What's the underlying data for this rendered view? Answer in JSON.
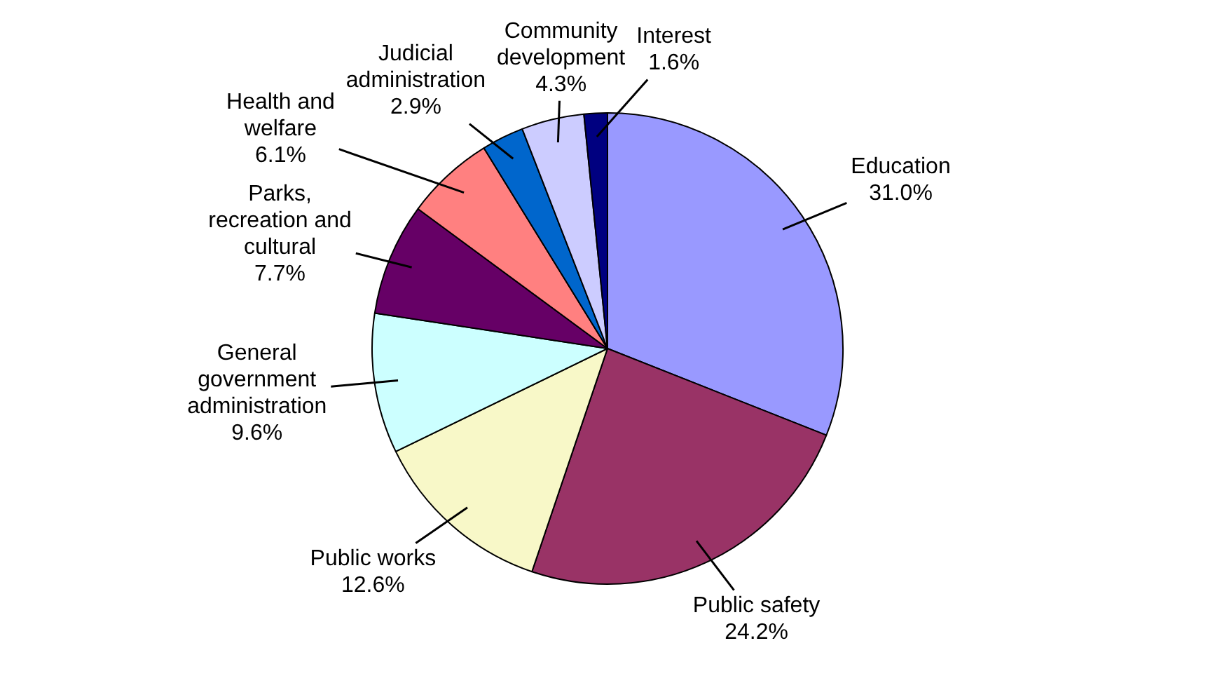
{
  "chart_data": {
    "type": "pie",
    "categories": [
      "Education",
      "Public safety",
      "Public works",
      "General government administration",
      "Parks, recreation and cultural",
      "Health and welfare",
      "Judicial administration",
      "Community development",
      "Interest"
    ],
    "values": [
      31.0,
      24.2,
      12.6,
      9.6,
      7.7,
      6.1,
      2.9,
      4.3,
      1.6
    ],
    "value_labels": [
      "31.0%",
      "24.2%",
      "12.6%",
      "9.6%",
      "7.7%",
      "6.1%",
      "2.9%",
      "4.3%",
      "1.6%"
    ],
    "colors": [
      "#9999ff",
      "#993366",
      "#f8f8c8",
      "#ccffff",
      "#660066",
      "#ff8080",
      "#0066cc",
      "#ccccff",
      "#000080"
    ],
    "legend": false
  }
}
